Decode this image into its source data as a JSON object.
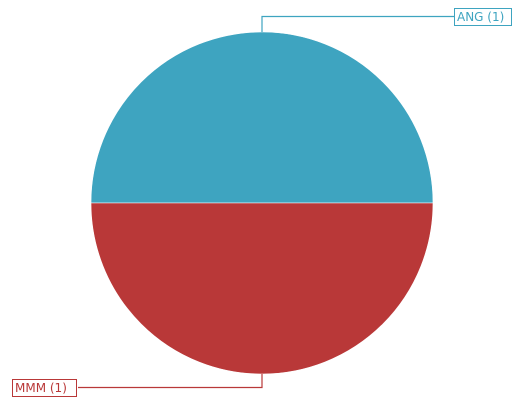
{
  "chart_data": {
    "type": "pie",
    "slices": [
      {
        "label": "ANG (1)",
        "value": 1,
        "color": "#3ea4c0"
      },
      {
        "label": "MMM (1)",
        "value": 1,
        "color": "#b93838"
      }
    ],
    "legend": "none",
    "data_labels": "callout"
  }
}
